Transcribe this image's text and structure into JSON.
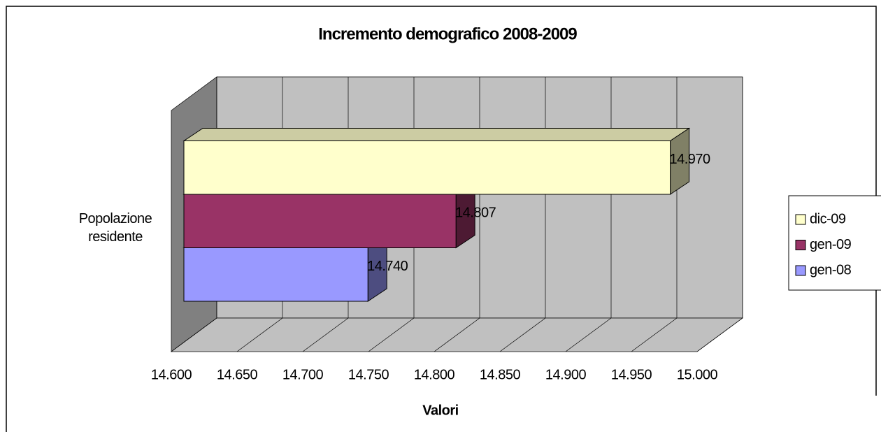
{
  "chart_data": {
    "type": "bar3d",
    "title": "Incremento demografico 2008-2009",
    "xlabel": "Valori",
    "categories": [
      "Popolazione residente"
    ],
    "series": [
      {
        "name": "gen-08",
        "color": "#9999ff",
        "values": [
          14740
        ],
        "value_labels": [
          "14.740"
        ]
      },
      {
        "name": "gen-09",
        "color": "#993366",
        "values": [
          14807
        ],
        "value_labels": [
          "14.807"
        ]
      },
      {
        "name": "dic-09",
        "color": "#ffffcc",
        "values": [
          14970
        ],
        "value_labels": [
          "14.970"
        ]
      }
    ],
    "xlim": [
      14600,
      15000
    ],
    "xticks": [
      {
        "value": 14600,
        "label": "14.600"
      },
      {
        "value": 14650,
        "label": "14.650"
      },
      {
        "value": 14700,
        "label": "14.700"
      },
      {
        "value": 14750,
        "label": "14.750"
      },
      {
        "value": 14800,
        "label": "14.800"
      },
      {
        "value": 14850,
        "label": "14.850"
      },
      {
        "value": 14900,
        "label": "14.900"
      },
      {
        "value": 14950,
        "label": "14.950"
      },
      {
        "value": 15000,
        "label": "15.000"
      }
    ],
    "grid": true,
    "legend": "right"
  }
}
